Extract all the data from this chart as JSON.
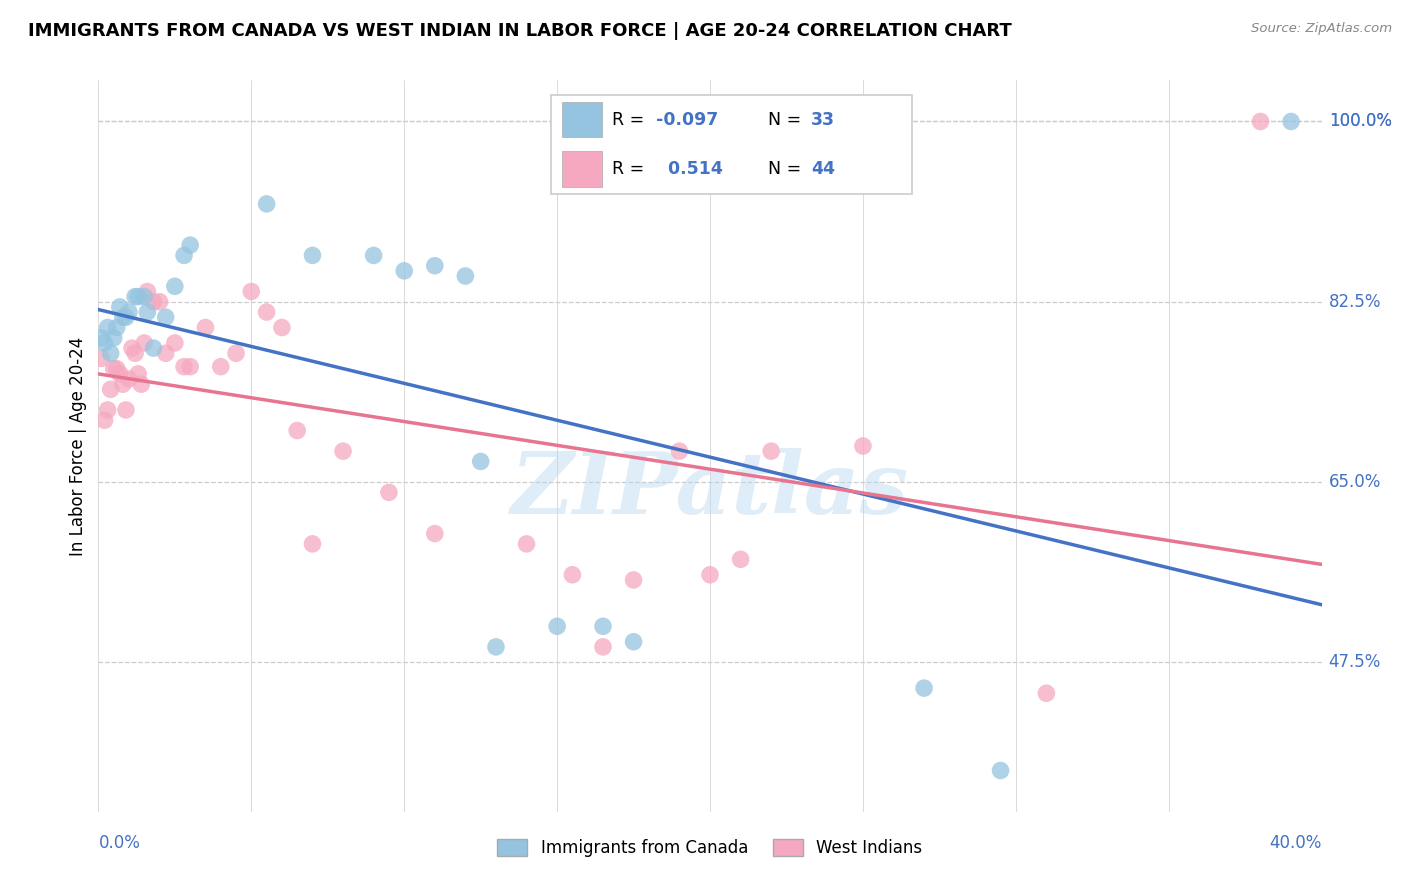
{
  "title": "IMMIGRANTS FROM CANADA VS WEST INDIAN IN LABOR FORCE | AGE 20-24 CORRELATION CHART",
  "source": "Source: ZipAtlas.com",
  "ylabel": "In Labor Force | Age 20-24",
  "ytick_values": [
    1.0,
    0.825,
    0.65,
    0.475
  ],
  "ytick_labels": [
    "100.0%",
    "82.5%",
    "65.0%",
    "47.5%"
  ],
  "xmin": 0.0,
  "xmax": 0.4,
  "ymin": 0.33,
  "ymax": 1.04,
  "legend_canada": "Immigrants from Canada",
  "legend_westindian": "West Indians",
  "R_canada": -0.097,
  "N_canada": 33,
  "R_westindian": 0.514,
  "N_westindian": 44,
  "canada_color": "#94c4e0",
  "westindian_color": "#f5a8c0",
  "canada_line_color": "#4472c4",
  "westindian_line_color": "#e8758f",
  "canada_x": [
    0.001,
    0.002,
    0.003,
    0.004,
    0.005,
    0.006,
    0.007,
    0.008,
    0.009,
    0.01,
    0.012,
    0.013,
    0.015,
    0.016,
    0.018,
    0.022,
    0.025,
    0.028,
    0.03,
    0.055,
    0.07,
    0.09,
    0.1,
    0.11,
    0.12,
    0.125,
    0.13,
    0.15,
    0.165,
    0.175,
    0.27,
    0.295,
    0.39
  ],
  "canada_y": [
    0.79,
    0.785,
    0.8,
    0.775,
    0.79,
    0.8,
    0.82,
    0.81,
    0.81,
    0.815,
    0.83,
    0.83,
    0.83,
    0.815,
    0.78,
    0.81,
    0.84,
    0.87,
    0.88,
    0.92,
    0.87,
    0.87,
    0.855,
    0.86,
    0.85,
    0.67,
    0.49,
    0.51,
    0.51,
    0.495,
    0.45,
    0.37,
    1.0
  ],
  "westindian_x": [
    0.001,
    0.002,
    0.003,
    0.004,
    0.005,
    0.006,
    0.007,
    0.008,
    0.009,
    0.01,
    0.011,
    0.012,
    0.013,
    0.014,
    0.015,
    0.016,
    0.018,
    0.02,
    0.022,
    0.025,
    0.028,
    0.03,
    0.035,
    0.04,
    0.045,
    0.05,
    0.055,
    0.06,
    0.065,
    0.07,
    0.08,
    0.095,
    0.11,
    0.14,
    0.155,
    0.165,
    0.175,
    0.19,
    0.2,
    0.21,
    0.22,
    0.25,
    0.31,
    0.38
  ],
  "westindian_y": [
    0.77,
    0.71,
    0.72,
    0.74,
    0.76,
    0.76,
    0.755,
    0.745,
    0.72,
    0.75,
    0.78,
    0.775,
    0.755,
    0.745,
    0.785,
    0.835,
    0.825,
    0.825,
    0.775,
    0.785,
    0.762,
    0.762,
    0.8,
    0.762,
    0.775,
    0.835,
    0.815,
    0.8,
    0.7,
    0.59,
    0.68,
    0.64,
    0.6,
    0.59,
    0.56,
    0.49,
    0.555,
    0.68,
    0.56,
    0.575,
    0.68,
    0.685,
    0.445,
    1.0
  ],
  "watermark_text": "ZIPatlas",
  "grid_color": "#cccccc",
  "bg_color": "#ffffff",
  "x_grid_ticks": [
    0.0,
    0.05,
    0.1,
    0.15,
    0.2,
    0.25,
    0.3,
    0.35,
    0.4
  ]
}
